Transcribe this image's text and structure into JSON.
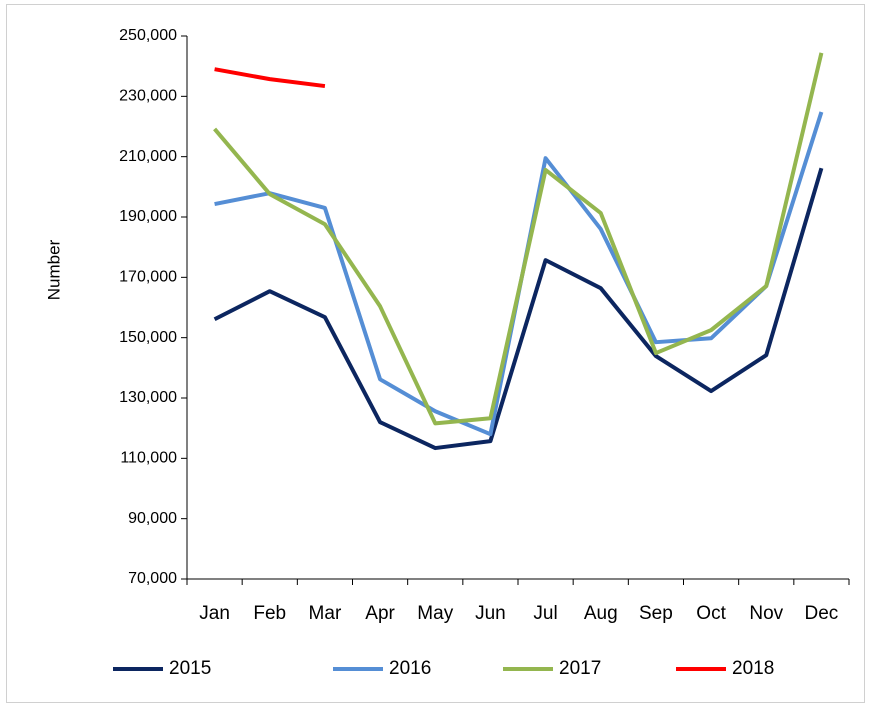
{
  "chart_data": {
    "type": "line",
    "y_label": "Number",
    "categories": [
      "Jan",
      "Feb",
      "Mar",
      "Apr",
      "May",
      "Jun",
      "Jul",
      "Aug",
      "Sep",
      "Oct",
      "Nov",
      "Dec"
    ],
    "series": [
      {
        "name": "2015",
        "color": "#0c2660",
        "values": [
          156100,
          165400,
          156800,
          122000,
          113400,
          115700,
          175700,
          166400,
          143900,
          132300,
          144200,
          206200
        ]
      },
      {
        "name": "2016",
        "color": "#558ed5",
        "values": [
          194300,
          197900,
          193000,
          136200,
          125600,
          118000,
          209500,
          186000,
          148500,
          149800,
          167100,
          224800
        ]
      },
      {
        "name": "2017",
        "color": "#94b64f",
        "values": [
          219200,
          197600,
          187600,
          160400,
          121600,
          123300,
          205600,
          191300,
          144900,
          152500,
          167100,
          244400
        ]
      },
      {
        "name": "2018",
        "color": "#ff0000",
        "values": [
          239000,
          235700,
          233400,
          null,
          null,
          null,
          null,
          null,
          null,
          null,
          null,
          null
        ]
      }
    ],
    "ylim": [
      70000,
      250000
    ],
    "yticks": [
      {
        "value": 70000,
        "label": "70,000"
      },
      {
        "value": 90000,
        "label": "90,000"
      },
      {
        "value": 110000,
        "label": "110,000"
      },
      {
        "value": 130000,
        "label": "130,000"
      },
      {
        "value": 150000,
        "label": "150,000"
      },
      {
        "value": 170000,
        "label": "170,000"
      },
      {
        "value": 190000,
        "label": "190,000"
      },
      {
        "value": 210000,
        "label": "210,000"
      },
      {
        "value": 230000,
        "label": "230,000"
      },
      {
        "value": 250000,
        "label": "250,000"
      }
    ],
    "legend": "bottom"
  }
}
